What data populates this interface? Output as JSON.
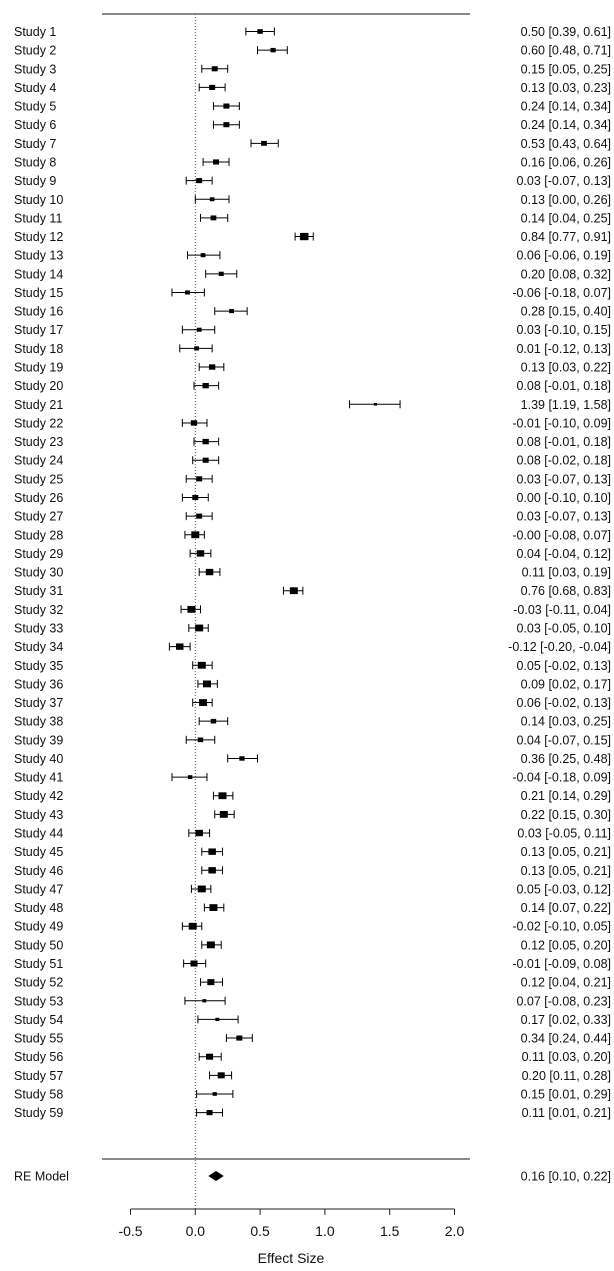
{
  "chart_data": {
    "type": "forest",
    "xlabel": "Effect Size",
    "xlim": [
      -0.5,
      2.0
    ],
    "xticks": [
      "-0.5",
      "0.0",
      "0.5",
      "1.0",
      "1.5",
      "2.0"
    ],
    "reference_line": 0.0,
    "studies": [
      {
        "label": "Study 1",
        "estimate": 0.5,
        "lower": 0.39,
        "upper": 0.61,
        "ci_text": "0.50 [0.39, 0.61]"
      },
      {
        "label": "Study 2",
        "estimate": 0.6,
        "lower": 0.48,
        "upper": 0.71,
        "ci_text": "0.60 [0.48, 0.71]"
      },
      {
        "label": "Study 3",
        "estimate": 0.15,
        "lower": 0.05,
        "upper": 0.25,
        "ci_text": "0.15 [0.05, 0.25]"
      },
      {
        "label": "Study 4",
        "estimate": 0.13,
        "lower": 0.03,
        "upper": 0.23,
        "ci_text": "0.13 [0.03, 0.23]"
      },
      {
        "label": "Study 5",
        "estimate": 0.24,
        "lower": 0.14,
        "upper": 0.34,
        "ci_text": "0.24 [0.14, 0.34]"
      },
      {
        "label": "Study 6",
        "estimate": 0.24,
        "lower": 0.14,
        "upper": 0.34,
        "ci_text": "0.24 [0.14, 0.34]"
      },
      {
        "label": "Study 7",
        "estimate": 0.53,
        "lower": 0.43,
        "upper": 0.64,
        "ci_text": "0.53 [0.43, 0.64]"
      },
      {
        "label": "Study 8",
        "estimate": 0.16,
        "lower": 0.06,
        "upper": 0.26,
        "ci_text": "0.16 [0.06, 0.26]"
      },
      {
        "label": "Study 9",
        "estimate": 0.03,
        "lower": -0.07,
        "upper": 0.13,
        "ci_text": "0.03 [-0.07, 0.13]"
      },
      {
        "label": "Study 10",
        "estimate": 0.13,
        "lower": 0.0,
        "upper": 0.26,
        "ci_text": "0.13 [0.00, 0.26]"
      },
      {
        "label": "Study 11",
        "estimate": 0.14,
        "lower": 0.04,
        "upper": 0.25,
        "ci_text": "0.14 [0.04, 0.25]"
      },
      {
        "label": "Study 12",
        "estimate": 0.84,
        "lower": 0.77,
        "upper": 0.91,
        "ci_text": "0.84 [0.77, 0.91]"
      },
      {
        "label": "Study 13",
        "estimate": 0.06,
        "lower": -0.06,
        "upper": 0.19,
        "ci_text": "0.06 [-0.06, 0.19]"
      },
      {
        "label": "Study 14",
        "estimate": 0.2,
        "lower": 0.08,
        "upper": 0.32,
        "ci_text": "0.20 [0.08, 0.32]"
      },
      {
        "label": "Study 15",
        "estimate": -0.06,
        "lower": -0.18,
        "upper": 0.07,
        "ci_text": "-0.06 [-0.18, 0.07]"
      },
      {
        "label": "Study 16",
        "estimate": 0.28,
        "lower": 0.15,
        "upper": 0.4,
        "ci_text": "0.28 [0.15, 0.40]"
      },
      {
        "label": "Study 17",
        "estimate": 0.03,
        "lower": -0.1,
        "upper": 0.15,
        "ci_text": "0.03 [-0.10, 0.15]"
      },
      {
        "label": "Study 18",
        "estimate": 0.01,
        "lower": -0.12,
        "upper": 0.13,
        "ci_text": "0.01 [-0.12, 0.13]"
      },
      {
        "label": "Study 19",
        "estimate": 0.13,
        "lower": 0.03,
        "upper": 0.22,
        "ci_text": "0.13 [0.03, 0.22]"
      },
      {
        "label": "Study 20",
        "estimate": 0.08,
        "lower": -0.01,
        "upper": 0.18,
        "ci_text": "0.08 [-0.01, 0.18]"
      },
      {
        "label": "Study 21",
        "estimate": 1.39,
        "lower": 1.19,
        "upper": 1.58,
        "ci_text": "1.39 [1.19, 1.58]"
      },
      {
        "label": "Study 22",
        "estimate": -0.01,
        "lower": -0.1,
        "upper": 0.09,
        "ci_text": "-0.01 [-0.10, 0.09]"
      },
      {
        "label": "Study 23",
        "estimate": 0.08,
        "lower": -0.01,
        "upper": 0.18,
        "ci_text": "0.08 [-0.01, 0.18]"
      },
      {
        "label": "Study 24",
        "estimate": 0.08,
        "lower": -0.02,
        "upper": 0.18,
        "ci_text": "0.08 [-0.02, 0.18]"
      },
      {
        "label": "Study 25",
        "estimate": 0.03,
        "lower": -0.07,
        "upper": 0.13,
        "ci_text": "0.03 [-0.07, 0.13]"
      },
      {
        "label": "Study 26",
        "estimate": 0.0,
        "lower": -0.1,
        "upper": 0.1,
        "ci_text": "0.00 [-0.10, 0.10]"
      },
      {
        "label": "Study 27",
        "estimate": 0.03,
        "lower": -0.07,
        "upper": 0.13,
        "ci_text": "0.03 [-0.07, 0.13]"
      },
      {
        "label": "Study 28",
        "estimate": -0.0,
        "lower": -0.08,
        "upper": 0.07,
        "ci_text": "-0.00 [-0.08, 0.07]"
      },
      {
        "label": "Study 29",
        "estimate": 0.04,
        "lower": -0.04,
        "upper": 0.12,
        "ci_text": "0.04 [-0.04, 0.12]"
      },
      {
        "label": "Study 30",
        "estimate": 0.11,
        "lower": 0.03,
        "upper": 0.19,
        "ci_text": "0.11 [0.03, 0.19]"
      },
      {
        "label": "Study 31",
        "estimate": 0.76,
        "lower": 0.68,
        "upper": 0.83,
        "ci_text": "0.76 [0.68, 0.83]"
      },
      {
        "label": "Study 32",
        "estimate": -0.03,
        "lower": -0.11,
        "upper": 0.04,
        "ci_text": "-0.03 [-0.11, 0.04]"
      },
      {
        "label": "Study 33",
        "estimate": 0.03,
        "lower": -0.05,
        "upper": 0.1,
        "ci_text": "0.03 [-0.05, 0.10]"
      },
      {
        "label": "Study 34",
        "estimate": -0.12,
        "lower": -0.2,
        "upper": -0.04,
        "ci_text": "-0.12 [-0.20, -0.04]"
      },
      {
        "label": "Study 35",
        "estimate": 0.05,
        "lower": -0.02,
        "upper": 0.13,
        "ci_text": "0.05 [-0.02, 0.13]"
      },
      {
        "label": "Study 36",
        "estimate": 0.09,
        "lower": 0.02,
        "upper": 0.17,
        "ci_text": "0.09 [0.02, 0.17]"
      },
      {
        "label": "Study 37",
        "estimate": 0.06,
        "lower": -0.02,
        "upper": 0.13,
        "ci_text": "0.06 [-0.02, 0.13]"
      },
      {
        "label": "Study 38",
        "estimate": 0.14,
        "lower": 0.03,
        "upper": 0.25,
        "ci_text": "0.14 [0.03, 0.25]"
      },
      {
        "label": "Study 39",
        "estimate": 0.04,
        "lower": -0.07,
        "upper": 0.15,
        "ci_text": "0.04 [-0.07, 0.15]"
      },
      {
        "label": "Study 40",
        "estimate": 0.36,
        "lower": 0.25,
        "upper": 0.48,
        "ci_text": "0.36 [0.25, 0.48]"
      },
      {
        "label": "Study 41",
        "estimate": -0.04,
        "lower": -0.18,
        "upper": 0.09,
        "ci_text": "-0.04 [-0.18, 0.09]"
      },
      {
        "label": "Study 42",
        "estimate": 0.21,
        "lower": 0.14,
        "upper": 0.29,
        "ci_text": "0.21 [0.14, 0.29]"
      },
      {
        "label": "Study 43",
        "estimate": 0.22,
        "lower": 0.15,
        "upper": 0.3,
        "ci_text": "0.22 [0.15, 0.30]"
      },
      {
        "label": "Study 44",
        "estimate": 0.03,
        "lower": -0.05,
        "upper": 0.11,
        "ci_text": "0.03 [-0.05, 0.11]"
      },
      {
        "label": "Study 45",
        "estimate": 0.13,
        "lower": 0.05,
        "upper": 0.21,
        "ci_text": "0.13 [0.05, 0.21]"
      },
      {
        "label": "Study 46",
        "estimate": 0.13,
        "lower": 0.05,
        "upper": 0.21,
        "ci_text": "0.13 [0.05, 0.21]"
      },
      {
        "label": "Study 47",
        "estimate": 0.05,
        "lower": -0.03,
        "upper": 0.12,
        "ci_text": "0.05 [-0.03, 0.12]"
      },
      {
        "label": "Study 48",
        "estimate": 0.14,
        "lower": 0.07,
        "upper": 0.22,
        "ci_text": "0.14 [0.07, 0.22]"
      },
      {
        "label": "Study 49",
        "estimate": -0.02,
        "lower": -0.1,
        "upper": 0.05,
        "ci_text": "-0.02 [-0.10, 0.05]"
      },
      {
        "label": "Study 50",
        "estimate": 0.12,
        "lower": 0.05,
        "upper": 0.2,
        "ci_text": "0.12 [0.05, 0.20]"
      },
      {
        "label": "Study 51",
        "estimate": -0.01,
        "lower": -0.09,
        "upper": 0.08,
        "ci_text": "-0.01 [-0.09, 0.08]"
      },
      {
        "label": "Study 52",
        "estimate": 0.12,
        "lower": 0.04,
        "upper": 0.21,
        "ci_text": "0.12 [0.04, 0.21]"
      },
      {
        "label": "Study 53",
        "estimate": 0.07,
        "lower": -0.08,
        "upper": 0.23,
        "ci_text": "0.07 [-0.08, 0.23]"
      },
      {
        "label": "Study 54",
        "estimate": 0.17,
        "lower": 0.02,
        "upper": 0.33,
        "ci_text": "0.17 [0.02, 0.33]"
      },
      {
        "label": "Study 55",
        "estimate": 0.34,
        "lower": 0.24,
        "upper": 0.44,
        "ci_text": "0.34 [0.24, 0.44]"
      },
      {
        "label": "Study 56",
        "estimate": 0.11,
        "lower": 0.03,
        "upper": 0.2,
        "ci_text": "0.11 [0.03, 0.20]"
      },
      {
        "label": "Study 57",
        "estimate": 0.2,
        "lower": 0.11,
        "upper": 0.28,
        "ci_text": "0.20 [0.11, 0.28]"
      },
      {
        "label": "Study 58",
        "estimate": 0.15,
        "lower": 0.01,
        "upper": 0.29,
        "ci_text": "0.15 [0.01, 0.29]"
      },
      {
        "label": "Study 59",
        "estimate": 0.11,
        "lower": 0.01,
        "upper": 0.21,
        "ci_text": "0.11 [0.01, 0.21]"
      }
    ],
    "summary": {
      "label": "RE Model",
      "estimate": 0.16,
      "lower": 0.1,
      "upper": 0.22,
      "ci_text": "0.16 [0.10, 0.22]"
    },
    "colors": {
      "marks": "#000000",
      "reference_line": "#555555",
      "frame": "#444444",
      "background": "#ffffff"
    }
  }
}
